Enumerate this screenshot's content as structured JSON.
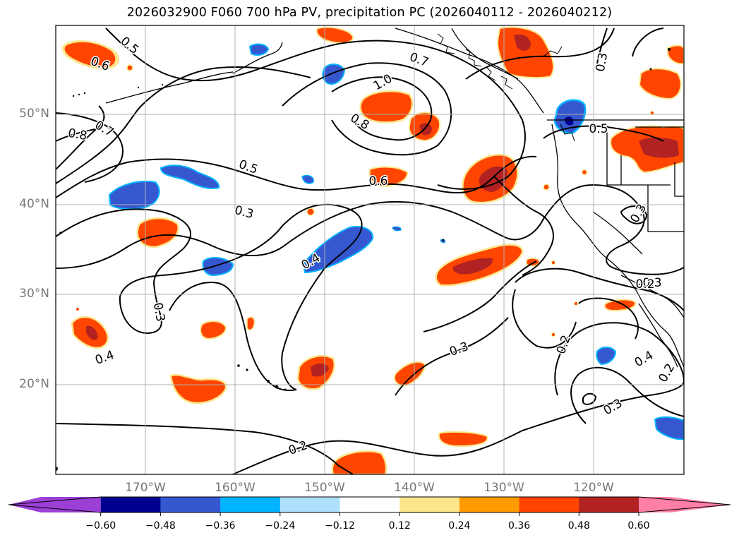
{
  "title": "2026032900 F060 700 hPa PV, precipitation PC (2026040112 - 2026040212)",
  "map": {
    "lat_labels": [
      "50°N",
      "40°N",
      "30°N",
      "20°N"
    ],
    "lon_labels": [
      "170°W",
      "160°W",
      "150°W",
      "140°W",
      "130°W",
      "120°W"
    ],
    "contour_labels": [
      "0.5",
      "0.6",
      "0.8",
      "0.7",
      "0.5",
      "0.3",
      "0.4",
      "0.3",
      "0.4",
      "1.0",
      "0.7",
      "0.8",
      "0.6",
      "0.3",
      "0.3",
      "0.5",
      "0.3",
      "0.2",
      "0.3",
      "0.2",
      "0.4",
      "0.2",
      "0.2",
      "0.3"
    ]
  },
  "colorbar": {
    "colors": [
      "#9b3fd6",
      "#000090",
      "#3558d0",
      "#00b4ff",
      "#aee0fb",
      "#ffffff",
      "#fde68a",
      "#ff9a00",
      "#ff4500",
      "#b22222",
      "#ff7fa7"
    ],
    "tick_labels": [
      "−0.60",
      "−0.48",
      "−0.36",
      "−0.24",
      "−0.12",
      "0.12",
      "0.24",
      "0.36",
      "0.48",
      "0.60"
    ]
  }
}
